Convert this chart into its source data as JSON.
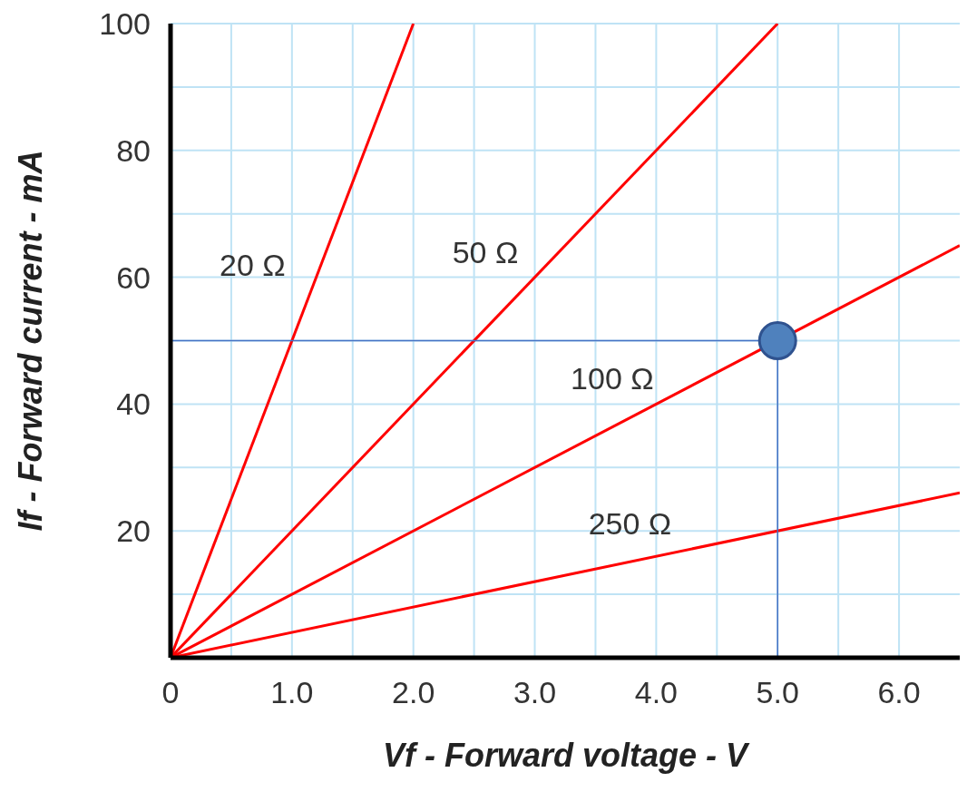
{
  "chart_data": {
    "type": "line",
    "xlabel": "Vf - Forward voltage - V",
    "ylabel": "If - Forward current - mA",
    "xlim": [
      0,
      6.5
    ],
    "ylim": [
      0,
      100
    ],
    "xticks": [
      0,
      {
        "value": 0.5,
        "label": null
      },
      {
        "value": 1,
        "label": "1.0"
      },
      {
        "value": 1.5,
        "label": null
      },
      {
        "value": 2,
        "label": "2.0"
      },
      {
        "value": 2.5,
        "label": null
      },
      {
        "value": 3,
        "label": "3.0"
      },
      {
        "value": 3.5,
        "label": null
      },
      {
        "value": 4,
        "label": "4.0"
      },
      {
        "value": 4.5,
        "label": null
      },
      {
        "value": 5,
        "label": "5.0"
      },
      {
        "value": 5.5,
        "label": null
      },
      {
        "value": 6,
        "label": "6.0"
      }
    ],
    "yticks": [
      {
        "value": 0,
        "label": null
      },
      {
        "value": 10,
        "label": null
      },
      20,
      {
        "value": 30,
        "label": null
      },
      40,
      {
        "value": 50,
        "label": null
      },
      60,
      {
        "value": 70,
        "label": null
      },
      80,
      {
        "value": 90,
        "label": null
      },
      100
    ],
    "grid": true,
    "line_style": "solid",
    "series": [
      {
        "name": "20 Ω",
        "color": "#ff0000",
        "x": [
          0,
          2
        ],
        "values": [
          0,
          100
        ]
      },
      {
        "name": "50 Ω",
        "color": "#ff0000",
        "x": [
          0,
          5
        ],
        "values": [
          0,
          100
        ]
      },
      {
        "name": "100 Ω",
        "color": "#ff0000",
        "x": [
          0,
          6.5
        ],
        "values": [
          0,
          65
        ]
      },
      {
        "name": "250 Ω",
        "color": "#ff0000",
        "x": [
          0,
          6.5
        ],
        "values": [
          0,
          26
        ]
      },
      {
        "color": "#4472c4",
        "x": [
          0,
          5,
          5
        ],
        "values": [
          50,
          50,
          0
        ]
      },
      {
        "type": "scatter",
        "color": "#4f81bd",
        "marker": "circle",
        "x": [
          5
        ],
        "values": [
          50
        ]
      }
    ]
  }
}
